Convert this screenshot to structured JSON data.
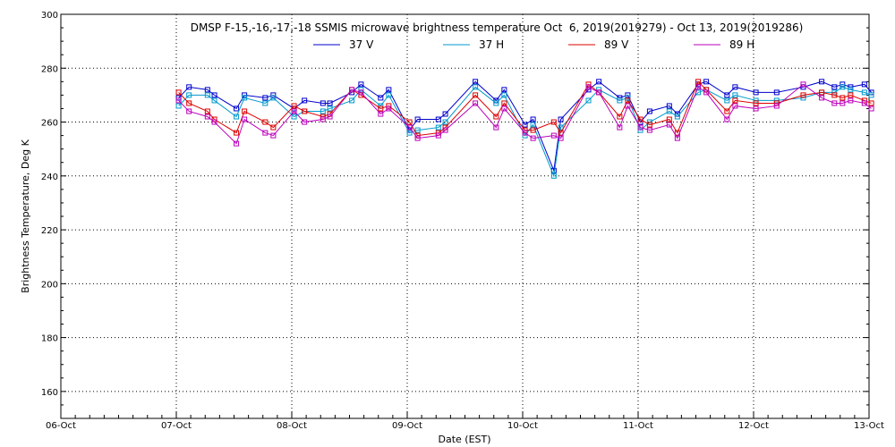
{
  "chart_data": {
    "type": "line",
    "title": "DMSP F-15,-16,-17,-18 SSMIS microwave brightness temperature Oct  6, 2019(2019279) - Oct 13, 2019(2019286)",
    "xlabel": "Date (EST)",
    "ylabel": "Brightness Temperature, Deg K",
    "xlim": [
      0,
      7
    ],
    "ylim": [
      150,
      300
    ],
    "x_ticks": [
      {
        "label": "06-Oct",
        "value": 0
      },
      {
        "label": "07-Oct",
        "value": 1
      },
      {
        "label": "08-Oct",
        "value": 2
      },
      {
        "label": "09-Oct",
        "value": 3
      },
      {
        "label": "10-Oct",
        "value": 4
      },
      {
        "label": "11-Oct",
        "value": 5
      },
      {
        "label": "12-Oct",
        "value": 6
      },
      {
        "label": "13-Oct",
        "value": 7
      }
    ],
    "y_ticks": [
      160,
      180,
      200,
      220,
      240,
      260,
      280,
      300
    ],
    "grid": true,
    "legend_position": "top-center",
    "x": [
      1.02,
      1.11,
      1.27,
      1.33,
      1.52,
      1.59,
      1.77,
      1.84,
      2.02,
      2.11,
      2.27,
      2.33,
      2.52,
      2.6,
      2.77,
      2.84,
      3.02,
      3.09,
      3.27,
      3.33,
      3.59,
      3.77,
      3.84,
      4.02,
      4.09,
      4.27,
      4.33,
      4.57,
      4.66,
      4.84,
      4.91,
      5.02,
      5.1,
      5.27,
      5.34,
      5.52,
      5.59,
      5.77,
      5.84,
      6.02,
      6.2,
      6.43,
      6.59,
      6.7,
      6.77,
      6.84,
      6.96,
      7.02
    ],
    "series": [
      {
        "name": "37 V",
        "color": "#0000cc",
        "values": [
          269,
          273,
          272,
          270,
          265,
          270,
          269,
          270,
          265,
          268,
          267,
          267,
          271,
          274,
          269,
          272,
          257,
          261,
          261,
          263,
          275,
          268,
          272,
          259,
          261,
          242,
          261,
          272,
          275,
          269,
          270,
          260,
          264,
          266,
          263,
          274,
          275,
          270,
          273,
          271,
          271,
          273,
          275,
          273,
          274,
          273,
          274,
          271
        ]
      },
      {
        "name": "37 H",
        "color": "#0099cc",
        "values": [
          266,
          270,
          270,
          268,
          262,
          269,
          267,
          269,
          262,
          264,
          264,
          265,
          268,
          272,
          266,
          270,
          256,
          257,
          258,
          260,
          273,
          267,
          270,
          255,
          259,
          240,
          258,
          268,
          272,
          268,
          269,
          257,
          260,
          264,
          262,
          271,
          272,
          268,
          270,
          268,
          268,
          269,
          271,
          271,
          273,
          272,
          271,
          270
        ]
      },
      {
        "name": "89 V",
        "color": "#dd0000",
        "values": [
          271,
          267,
          264,
          261,
          256,
          264,
          260,
          258,
          266,
          264,
          262,
          263,
          272,
          270,
          265,
          266,
          260,
          255,
          256,
          258,
          270,
          262,
          267,
          257,
          257,
          260,
          256,
          274,
          271,
          262,
          268,
          261,
          259,
          261,
          256,
          275,
          272,
          264,
          268,
          267,
          267,
          270,
          271,
          270,
          269,
          270,
          268,
          267
        ]
      },
      {
        "name": "89 H",
        "color": "#bb00bb",
        "values": [
          268,
          264,
          262,
          260,
          252,
          261,
          256,
          255,
          264,
          260,
          261,
          262,
          272,
          271,
          263,
          265,
          258,
          254,
          255,
          257,
          267,
          258,
          265,
          256,
          254,
          255,
          254,
          273,
          271,
          258,
          266,
          258,
          257,
          259,
          254,
          273,
          271,
          261,
          266,
          265,
          266,
          274,
          269,
          267,
          267,
          268,
          267,
          265
        ]
      }
    ]
  }
}
